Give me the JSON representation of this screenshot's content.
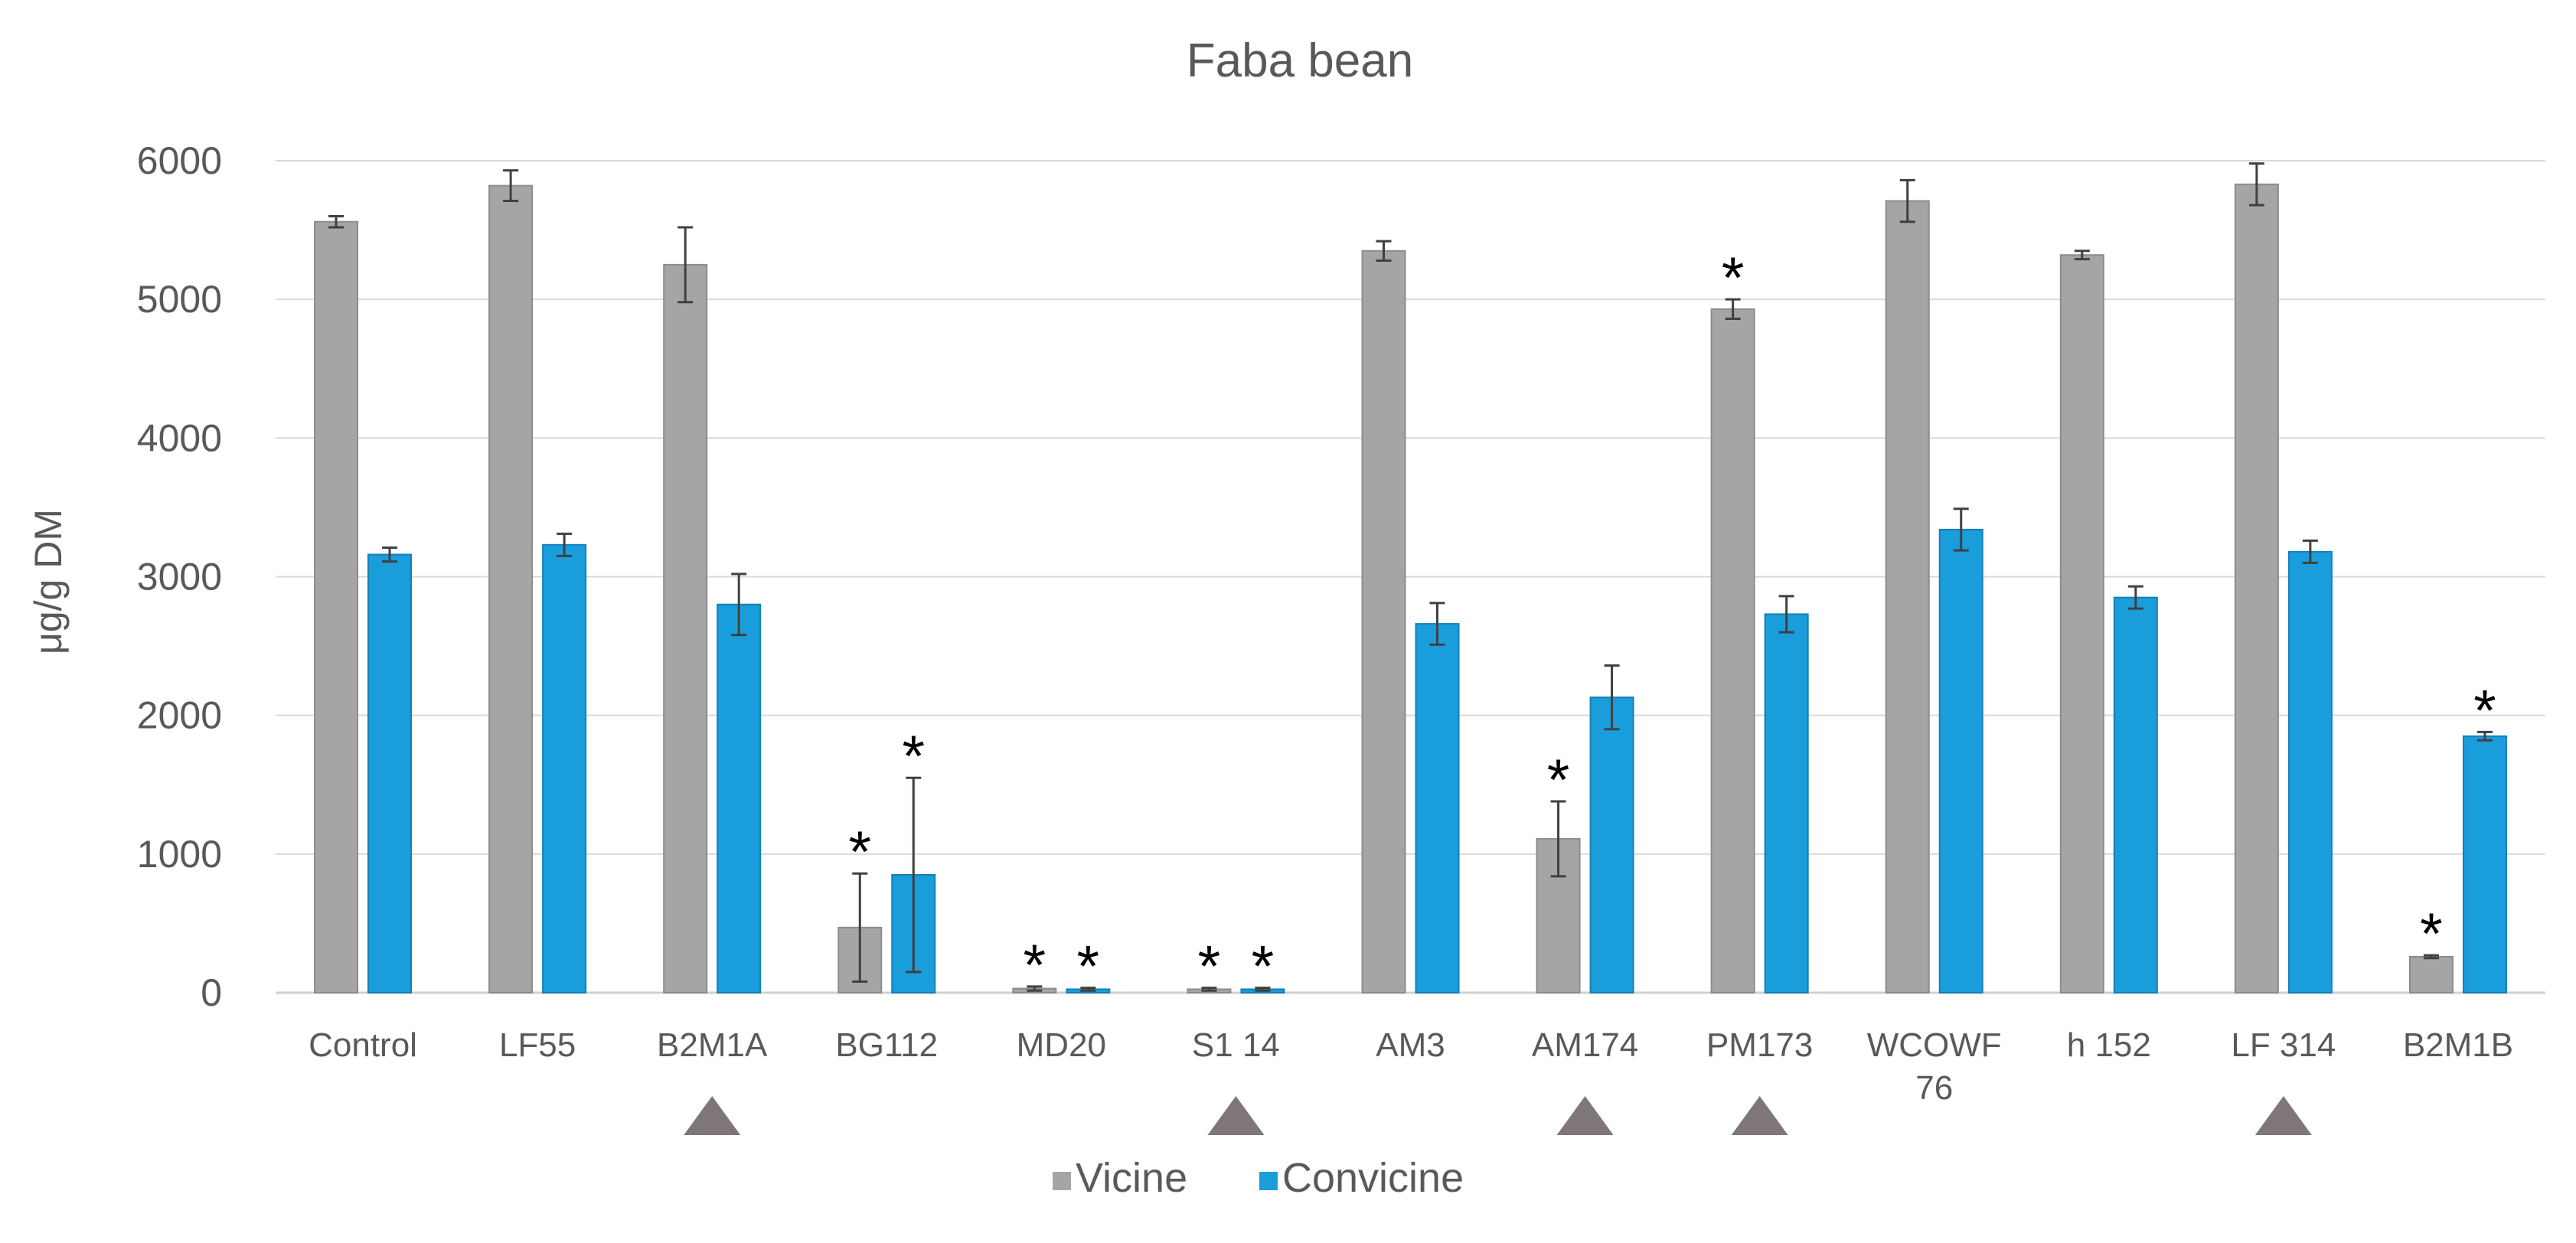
{
  "chart_data": {
    "type": "bar",
    "title": "Faba bean",
    "xlabel": "",
    "ylabel": "μg/g DM",
    "ylim": [
      0,
      6000
    ],
    "yticks": [
      0,
      1000,
      2000,
      3000,
      4000,
      5000,
      6000
    ],
    "grid": true,
    "legend_position": "bottom",
    "categories": [
      "Control",
      "LF55",
      "B2M1A",
      "BG112",
      "MD20",
      "S1 14",
      "AM3",
      "AM174",
      "PM173",
      "WCOWF 76",
      "h 152",
      "LF 314",
      "B2M1B"
    ],
    "category_label_lines": [
      [
        "Control"
      ],
      [
        "LF55"
      ],
      [
        "B2M1A"
      ],
      [
        "BG112"
      ],
      [
        "MD20"
      ],
      [
        "S1 14"
      ],
      [
        "AM3"
      ],
      [
        "AM174"
      ],
      [
        "PM173"
      ],
      [
        "WCOWF",
        "76"
      ],
      [
        "h 152"
      ],
      [
        "LF 314"
      ],
      [
        "B2M1B"
      ]
    ],
    "series": [
      {
        "name": "Vicine",
        "color": "#a5a5a5",
        "values": [
          5560,
          5820,
          5250,
          470,
          30,
          25,
          5350,
          1110,
          4930,
          5710,
          5320,
          5830,
          260
        ],
        "errors": [
          40,
          110,
          270,
          390,
          15,
          10,
          70,
          270,
          70,
          150,
          30,
          150,
          10
        ],
        "significant": [
          false,
          false,
          false,
          true,
          true,
          true,
          false,
          true,
          true,
          false,
          false,
          false,
          true
        ]
      },
      {
        "name": "Convicine",
        "color": "#1a9ddb",
        "values": [
          3160,
          3230,
          2800,
          850,
          25,
          25,
          2660,
          2130,
          2730,
          3340,
          2850,
          3180,
          1850
        ],
        "errors": [
          50,
          80,
          220,
          700,
          10,
          10,
          150,
          230,
          130,
          150,
          80,
          80,
          30
        ],
        "significant": [
          false,
          false,
          false,
          true,
          true,
          true,
          false,
          false,
          false,
          false,
          false,
          false,
          true
        ]
      }
    ],
    "significance_marker": "*",
    "triangle_marked_categories": [
      "B2M1A",
      "S1 14",
      "AM174",
      "PM173",
      "LF 314"
    ],
    "triangle_color": "#7f7777"
  }
}
